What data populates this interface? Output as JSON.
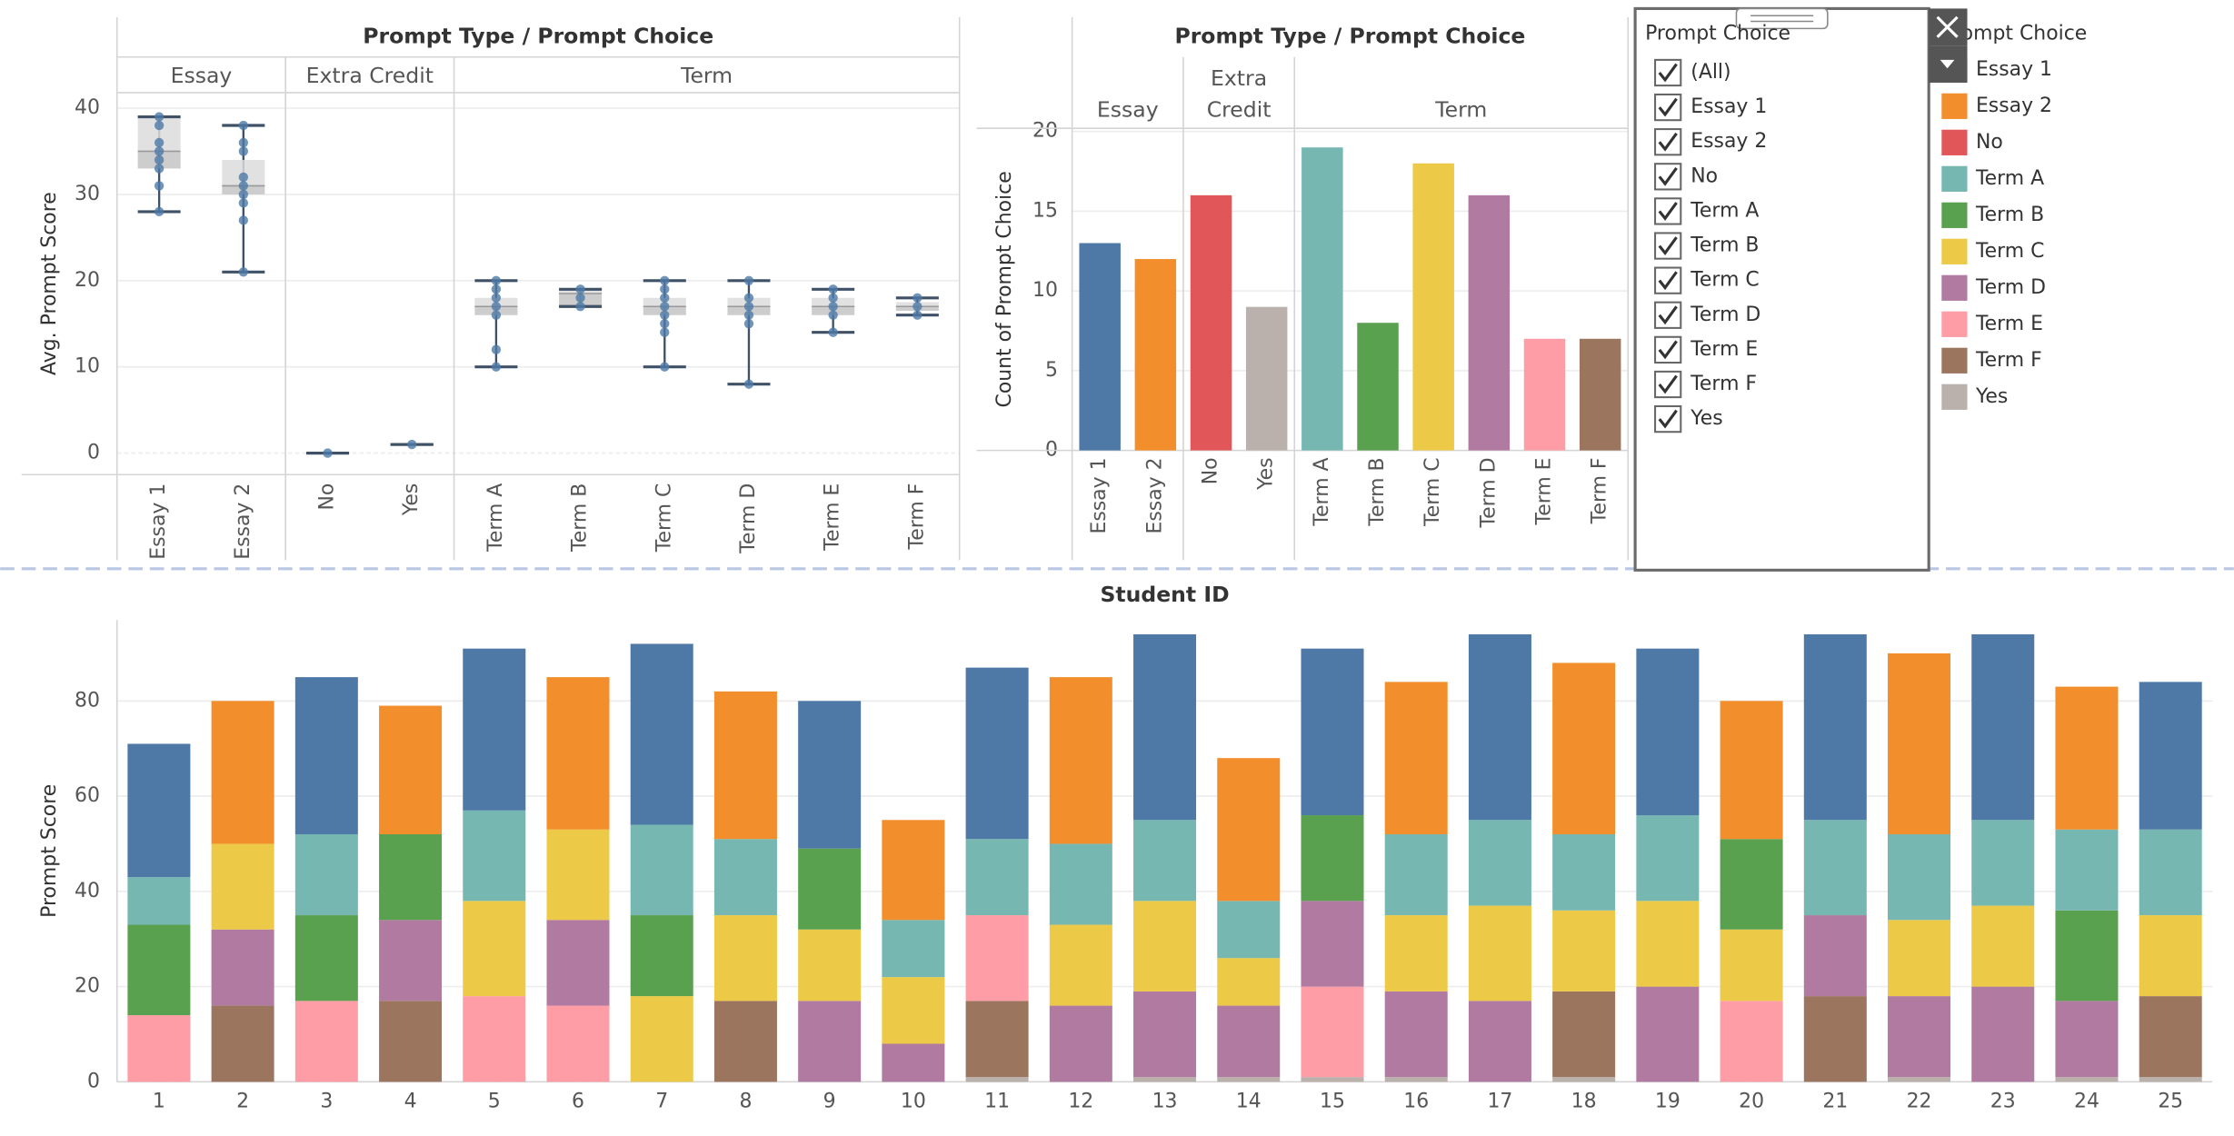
{
  "chart_data": [
    {
      "type": "box",
      "title": "Prompt Type / Prompt Choice",
      "y_label": "Avg. Prompt Score",
      "category_groups": [
        "Essay",
        null,
        "Extra Credit",
        null,
        "Term",
        null,
        null,
        null,
        null,
        null
      ],
      "categories": [
        "Essay 1",
        "Essay 2",
        "No",
        "Yes",
        "Term A",
        "Term B",
        "Term C",
        "Term D",
        "Term E",
        "Term F"
      ],
      "boxes": [
        {
          "min": 28,
          "q1": 33,
          "median": 35,
          "q3": 39,
          "max": 39,
          "points": [
            28,
            31,
            33,
            34,
            35,
            36,
            38,
            39
          ]
        },
        {
          "min": 21,
          "q1": 30,
          "median": 31,
          "q3": 34,
          "max": 38,
          "points": [
            21,
            27,
            29,
            30,
            31,
            32,
            35,
            36,
            38
          ]
        },
        {
          "min": 0,
          "q1": 0,
          "median": 0,
          "q3": 0,
          "max": 0,
          "points": [
            0
          ]
        },
        {
          "min": 1,
          "q1": 1,
          "median": 1,
          "q3": 1,
          "max": 1,
          "points": [
            1
          ]
        },
        {
          "min": 10,
          "q1": 16,
          "median": 17,
          "q3": 18,
          "max": 20,
          "points": [
            10,
            12,
            16,
            17,
            18,
            19,
            20
          ]
        },
        {
          "min": 17,
          "q1": 17,
          "median": 18.5,
          "q3": 19,
          "max": 19,
          "points": [
            17,
            18,
            19
          ]
        },
        {
          "min": 10,
          "q1": 16,
          "median": 17,
          "q3": 18,
          "max": 20,
          "points": [
            10,
            14,
            15,
            16,
            17,
            18,
            19,
            20
          ]
        },
        {
          "min": 8,
          "q1": 16,
          "median": 17,
          "q3": 18,
          "max": 20,
          "points": [
            8,
            15,
            16,
            17,
            18,
            20
          ]
        },
        {
          "min": 14,
          "q1": 16,
          "median": 17,
          "q3": 18,
          "max": 19,
          "points": [
            14,
            16,
            17,
            18,
            19
          ]
        },
        {
          "min": 16,
          "q1": 16.5,
          "median": 17,
          "q3": 17.5,
          "max": 18,
          "points": [
            16,
            17,
            18
          ]
        }
      ],
      "color": "#4e79a7",
      "ylim": [
        -2.5,
        41.8
      ],
      "yticks": [
        0,
        10,
        20,
        30,
        40
      ],
      "grid": true
    },
    {
      "type": "bar",
      "title": "Prompt Type / Prompt Choice",
      "y_label": "Count of Prompt Choice",
      "category_groups": [
        "Essay",
        null,
        "Extra Credit",
        null,
        "Term",
        null,
        null,
        null,
        null,
        null
      ],
      "categories": [
        "Essay 1",
        "Essay 2",
        "No",
        "Yes",
        "Term A",
        "Term B",
        "Term C",
        "Term D",
        "Term E",
        "Term F"
      ],
      "values": [
        13,
        12,
        16,
        9,
        19,
        8,
        18,
        16,
        7,
        7
      ],
      "colors": [
        "#4e79a7",
        "#f28e2b",
        "#e15759",
        "#bab0ac",
        "#76b7b2",
        "#59a14f",
        "#edc948",
        "#b07aa1",
        "#ff9da7",
        "#9c755f"
      ],
      "ylim": [
        0,
        20.2
      ],
      "yticks": [
        0,
        5,
        10,
        15,
        20
      ],
      "grid": true
    },
    {
      "type": "stacked_bar",
      "title": "Student ID",
      "y_label": "Prompt Score",
      "legend_title": "Prompt Choice",
      "categories": [
        "1",
        "2",
        "3",
        "4",
        "5",
        "6",
        "7",
        "8",
        "9",
        "10",
        "11",
        "12",
        "13",
        "14",
        "15",
        "16",
        "17",
        "18",
        "19",
        "20",
        "21",
        "22",
        "23",
        "24",
        "25"
      ],
      "series": [
        {
          "name": "Essay 1",
          "color": "#4e79a7",
          "values": [
            28,
            null,
            33,
            null,
            34,
            null,
            38,
            null,
            31,
            null,
            36,
            null,
            39,
            null,
            35,
            null,
            39,
            null,
            35,
            null,
            39,
            null,
            39,
            null,
            31
          ]
        },
        {
          "name": "Essay 2",
          "color": "#f28e2b",
          "values": [
            null,
            30,
            null,
            27,
            null,
            32,
            null,
            31,
            null,
            21,
            null,
            35,
            null,
            30,
            null,
            32,
            null,
            36,
            null,
            29,
            null,
            38,
            null,
            30,
            null
          ]
        },
        {
          "name": "No",
          "color": "#e15759",
          "values": [
            0,
            0,
            0,
            0,
            0,
            0,
            0,
            0,
            0,
            0,
            null,
            0,
            null,
            null,
            null,
            null,
            0,
            null,
            0,
            0,
            0,
            null,
            0,
            null,
            null
          ]
        },
        {
          "name": "Term A",
          "color": "#76b7b2",
          "values": [
            10,
            null,
            17,
            null,
            19,
            null,
            19,
            16,
            null,
            12,
            16,
            17,
            17,
            12,
            null,
            17,
            18,
            16,
            18,
            null,
            20,
            18,
            18,
            17,
            18
          ]
        },
        {
          "name": "Term B",
          "color": "#59a14f",
          "values": [
            19,
            null,
            18,
            18,
            null,
            null,
            17,
            null,
            17,
            null,
            null,
            null,
            null,
            null,
            18,
            null,
            null,
            null,
            null,
            19,
            null,
            null,
            null,
            19,
            null
          ]
        },
        {
          "name": "Term C",
          "color": "#edc948",
          "values": [
            null,
            18,
            null,
            null,
            20,
            19,
            18,
            18,
            15,
            14,
            null,
            17,
            19,
            10,
            null,
            16,
            20,
            17,
            18,
            15,
            null,
            16,
            17,
            null,
            17
          ]
        },
        {
          "name": "Term D",
          "color": "#b07aa1",
          "values": [
            null,
            16,
            null,
            17,
            null,
            18,
            null,
            null,
            17,
            8,
            null,
            16,
            18,
            15,
            18,
            18,
            17,
            null,
            20,
            null,
            17,
            17,
            20,
            16,
            null
          ]
        },
        {
          "name": "Term E",
          "color": "#ff9da7",
          "values": [
            14,
            null,
            17,
            null,
            18,
            16,
            null,
            null,
            null,
            null,
            18,
            null,
            null,
            null,
            19,
            null,
            null,
            null,
            null,
            17,
            null,
            null,
            null,
            null,
            null
          ]
        },
        {
          "name": "Term F",
          "color": "#9c755f",
          "values": [
            null,
            16,
            null,
            17,
            null,
            null,
            null,
            17,
            null,
            null,
            16,
            null,
            null,
            null,
            null,
            null,
            null,
            18,
            null,
            null,
            18,
            null,
            null,
            null,
            17
          ]
        },
        {
          "name": "Yes",
          "color": "#bab0ac",
          "values": [
            null,
            null,
            null,
            null,
            null,
            null,
            null,
            null,
            null,
            null,
            1,
            null,
            1,
            1,
            1,
            1,
            null,
            1,
            null,
            null,
            null,
            1,
            null,
            1,
            1
          ]
        }
      ],
      "ylim": [
        0,
        97
      ],
      "yticks": [
        0,
        20,
        40,
        60,
        80
      ],
      "grid": true
    }
  ],
  "filter": {
    "title": "Prompt Choice",
    "options": [
      "(All)",
      "Essay 1",
      "Essay 2",
      "No",
      "Term A",
      "Term B",
      "Term C",
      "Term D",
      "Term E",
      "Term F",
      "Yes"
    ],
    "checked": [
      true,
      true,
      true,
      true,
      true,
      true,
      true,
      true,
      true,
      true,
      true
    ]
  }
}
